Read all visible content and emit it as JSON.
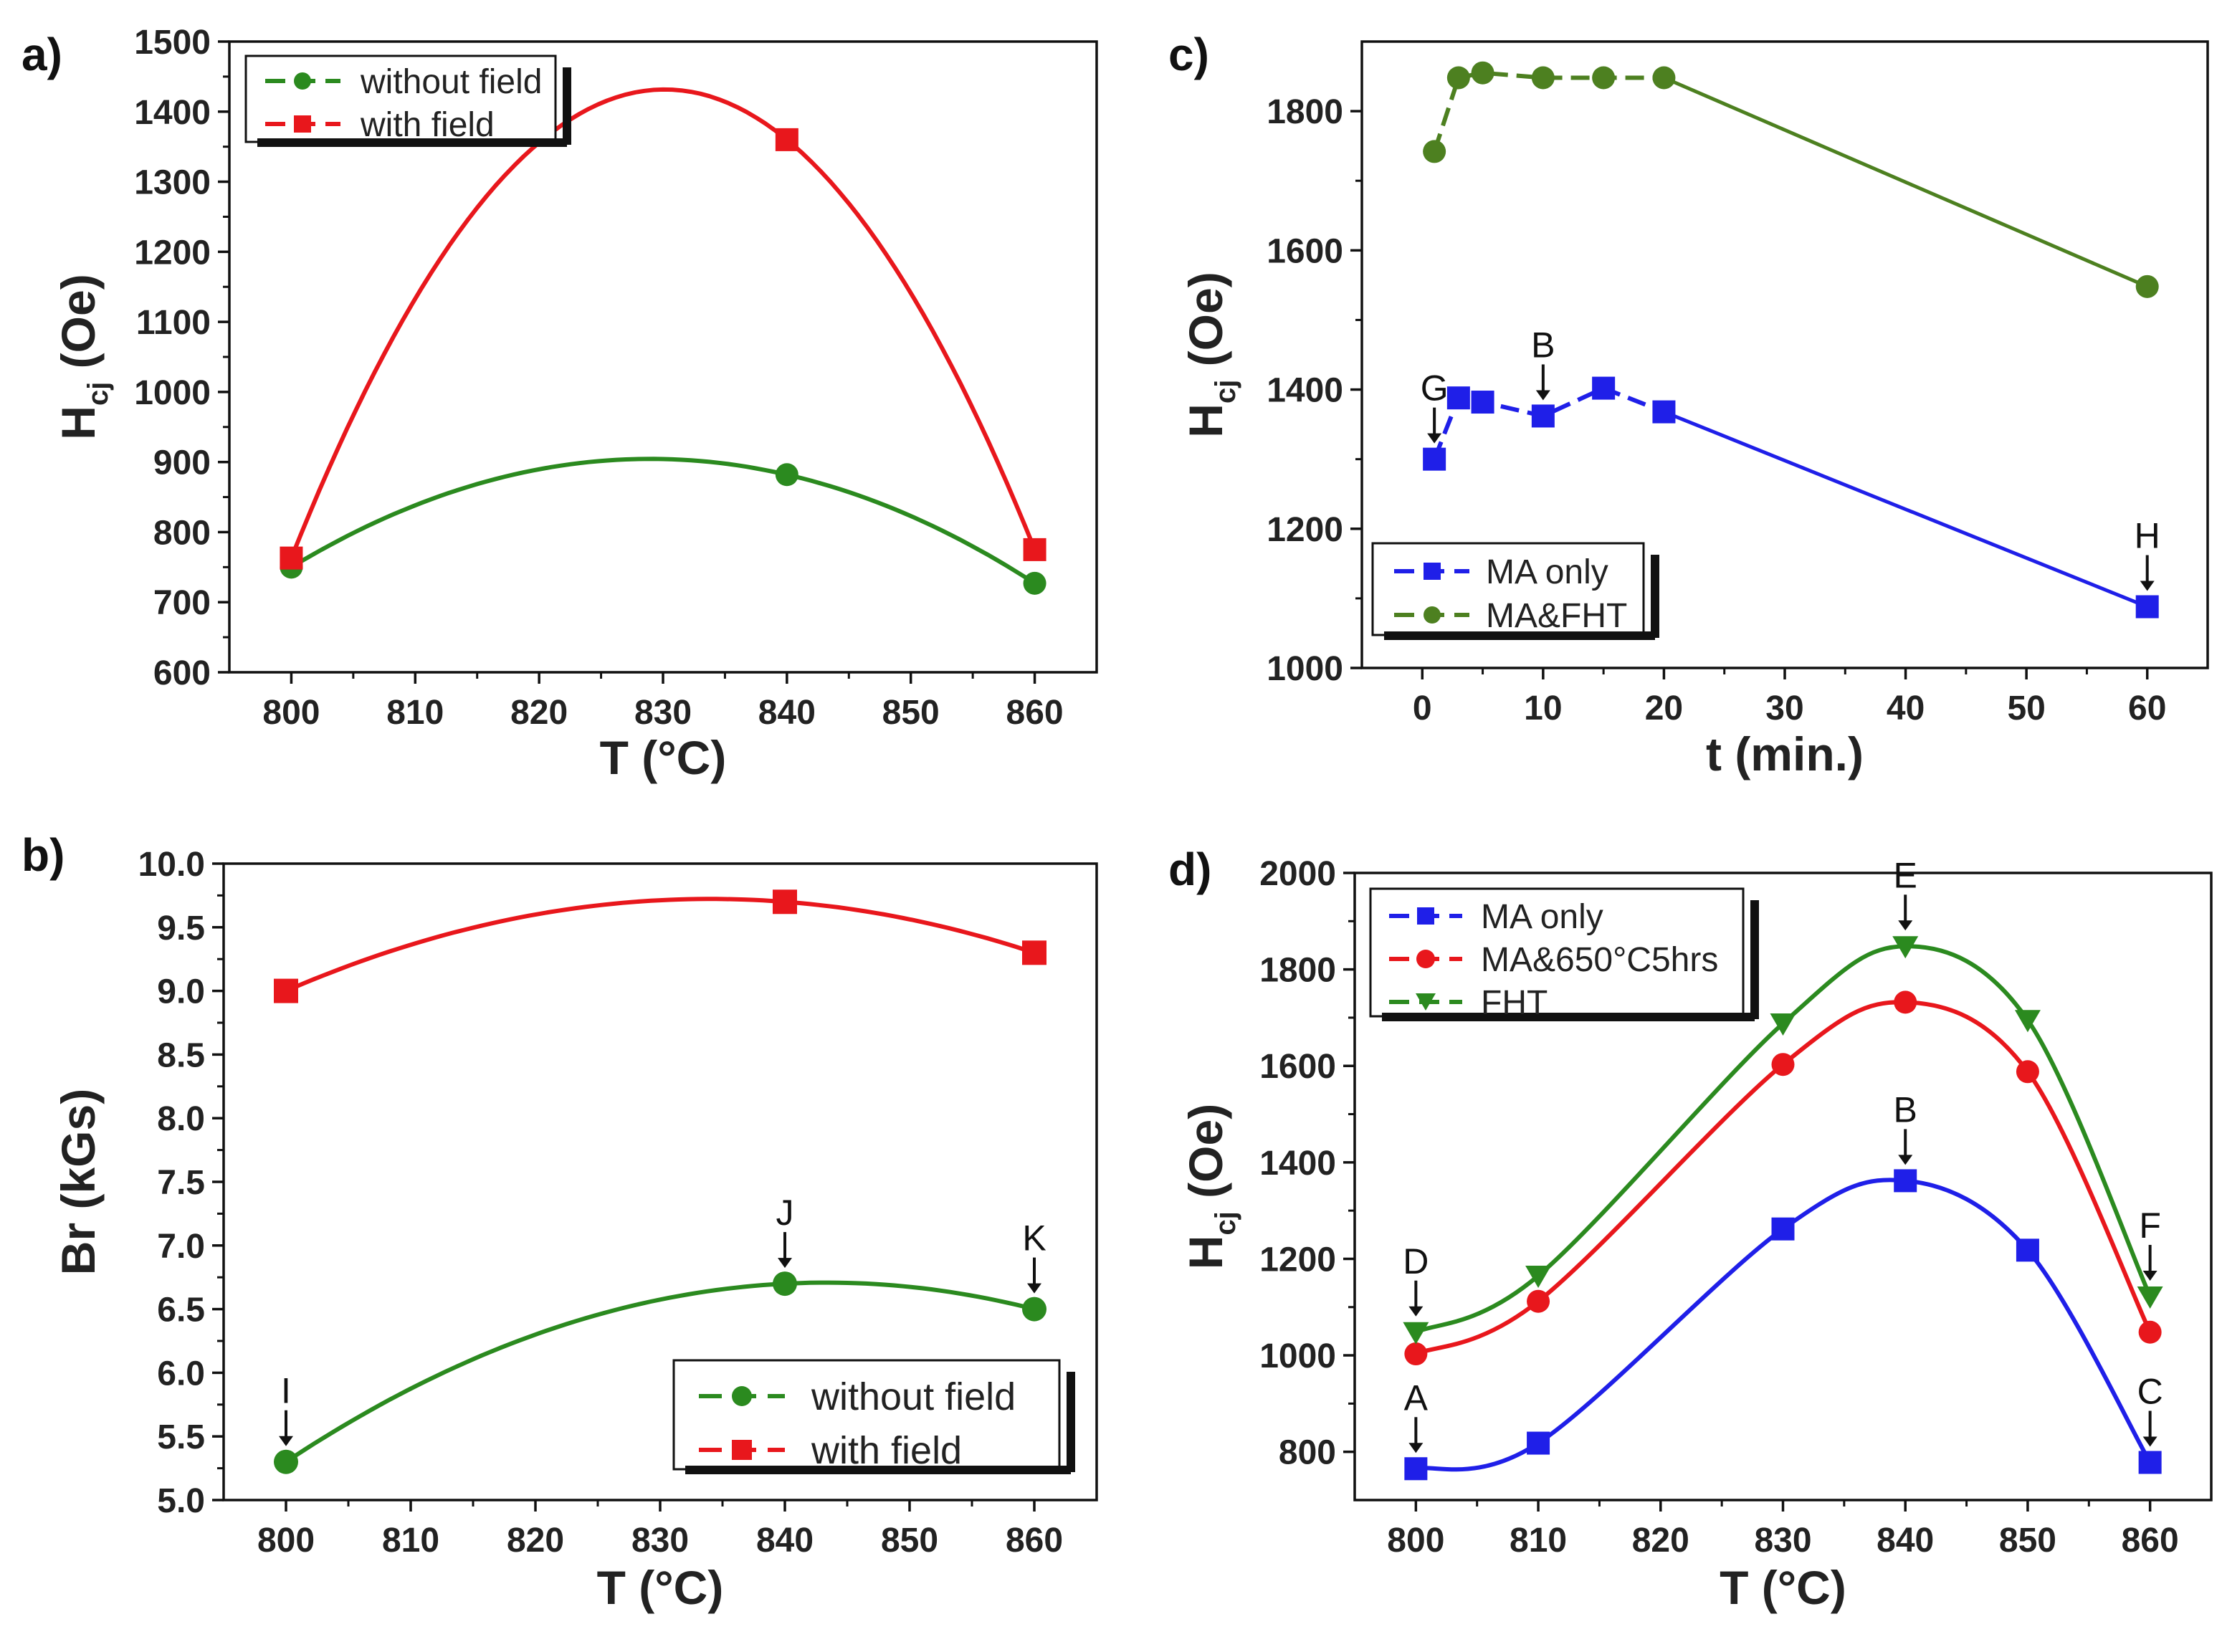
{
  "colors": {
    "red": "#e8171c",
    "green": "#2b8a1f",
    "darkgreen": "#4d8020",
    "blue": "#1f1fe8",
    "axis": "#111111"
  },
  "panels": [
    {
      "id": "a",
      "letter": "a)"
    },
    {
      "id": "b",
      "letter": "b)"
    },
    {
      "id": "c",
      "letter": "c)"
    },
    {
      "id": "d",
      "letter": "d)"
    }
  ],
  "chart_data": [
    {
      "panel": "a",
      "type": "line",
      "xlabel": "T (°C)",
      "ylabel_main": "H",
      "ylabel_sub": "cj",
      "ylabel_unit": " (Oe)",
      "xlim": [
        795,
        865
      ],
      "ylim": [
        600,
        1500
      ],
      "xticks": [
        800,
        810,
        820,
        830,
        840,
        850,
        860
      ],
      "yticks": [
        600,
        700,
        800,
        900,
        1000,
        1100,
        1200,
        1300,
        1400,
        1500
      ],
      "legend_position": "top-left",
      "series": [
        {
          "name": "without field",
          "color": "#2b8a1f",
          "marker": "circle",
          "x": [
            800,
            840,
            860
          ],
          "y": [
            750,
            882,
            727
          ]
        },
        {
          "name": "with field",
          "color": "#e8171c",
          "marker": "square",
          "x": [
            800,
            840,
            860
          ],
          "y": [
            763,
            1360,
            775
          ]
        }
      ],
      "annotations": []
    },
    {
      "panel": "b",
      "type": "line",
      "xlabel": "T (°C)",
      "ylabel_main": "Br (kGs)",
      "xlim": [
        795,
        865
      ],
      "ylim": [
        5.0,
        10.0
      ],
      "xticks": [
        800,
        810,
        820,
        830,
        840,
        850,
        860
      ],
      "yticks": [
        "5.0",
        "5.5",
        "6.0",
        "6.5",
        "7.0",
        "7.5",
        "8.0",
        "8.5",
        "9.0",
        "9.5",
        "10.0"
      ],
      "legend_position": "bottom-right",
      "series": [
        {
          "name": "without field",
          "color": "#2b8a1f",
          "marker": "circle",
          "x": [
            800,
            840,
            860
          ],
          "y": [
            5.3,
            6.7,
            6.5
          ]
        },
        {
          "name": "with field",
          "color": "#e8171c",
          "marker": "square",
          "x": [
            800,
            840,
            860
          ],
          "y": [
            9.0,
            9.7,
            9.3
          ]
        }
      ],
      "annotations": [
        {
          "text": "I",
          "x": 800,
          "y": 5.3
        },
        {
          "text": "J",
          "x": 840,
          "y": 6.7
        },
        {
          "text": "K",
          "x": 860,
          "y": 6.5
        }
      ]
    },
    {
      "panel": "c",
      "type": "line",
      "xlabel": "t (min.)",
      "ylabel_main": "H",
      "ylabel_sub": "cj",
      "ylabel_unit": " (Oe)",
      "xlim": [
        -5,
        65
      ],
      "ylim": [
        1000,
        1900
      ],
      "xticks": [
        0,
        10,
        20,
        30,
        40,
        50,
        60
      ],
      "yticks": [
        1000,
        1200,
        1400,
        1600,
        1800
      ],
      "legend_position": "bottom-left",
      "series": [
        {
          "name": "MA only",
          "color": "#1f1fe8",
          "marker": "square",
          "x": [
            1,
            3,
            5,
            10,
            15,
            20,
            60
          ],
          "y": [
            1300,
            1388,
            1382,
            1362,
            1402,
            1368,
            1088
          ]
        },
        {
          "name": "MA&FHT",
          "color": "#4d8020",
          "marker": "circle",
          "x": [
            1,
            3,
            5,
            10,
            15,
            20,
            60
          ],
          "y": [
            1742,
            1848,
            1855,
            1848,
            1848,
            1848,
            1548
          ]
        }
      ],
      "annotations": [
        {
          "text": "G",
          "x": 1,
          "y": 1300
        },
        {
          "text": "B",
          "x": 10,
          "y": 1362
        },
        {
          "text": "H",
          "x": 60,
          "y": 1088
        }
      ]
    },
    {
      "panel": "d",
      "type": "line",
      "xlabel": "T (°C)",
      "ylabel_main": "H",
      "ylabel_sub": "cj",
      "ylabel_unit": " (Oe)",
      "xlim": [
        795,
        865
      ],
      "ylim": [
        700,
        2000
      ],
      "xticks": [
        800,
        810,
        820,
        830,
        840,
        850,
        860
      ],
      "yticks": [
        800,
        1000,
        1200,
        1400,
        1600,
        1800,
        2000
      ],
      "legend_position": "top-left",
      "series": [
        {
          "name": "MA only",
          "color": "#1f1fe8",
          "marker": "square",
          "x": [
            800,
            810,
            830,
            840,
            850,
            860
          ],
          "y": [
            765,
            818,
            1262,
            1362,
            1218,
            778
          ]
        },
        {
          "name": "MA&650°C5hrs",
          "color": "#e8171c",
          "marker": "circle",
          "x": [
            800,
            810,
            830,
            840,
            850,
            860
          ],
          "y": [
            1003,
            1112,
            1603,
            1732,
            1588,
            1048
          ]
        },
        {
          "name": "FHT",
          "color": "#2b8a1f",
          "marker": "triangle-down",
          "x": [
            800,
            810,
            830,
            840,
            850,
            860
          ],
          "y": [
            1048,
            1165,
            1688,
            1848,
            1695,
            1122
          ]
        }
      ],
      "annotations": [
        {
          "text": "A",
          "x": 800,
          "y": 765
        },
        {
          "text": "B",
          "x": 840,
          "y": 1362
        },
        {
          "text": "C",
          "x": 860,
          "y": 778
        },
        {
          "text": "D",
          "x": 800,
          "y": 1048
        },
        {
          "text": "E",
          "x": 840,
          "y": 1848
        },
        {
          "text": "F",
          "x": 860,
          "y": 1122
        }
      ]
    }
  ]
}
